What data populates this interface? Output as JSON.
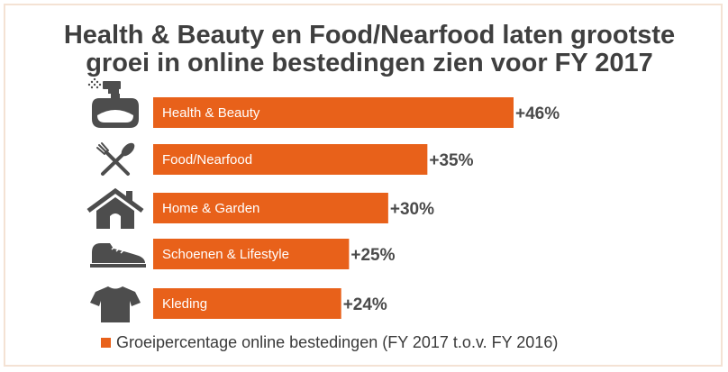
{
  "colors": {
    "bar": "#e8611a",
    "icon": "#4d4d4d",
    "text": "#3f3f3f"
  },
  "title": {
    "line1": "Health & Beauty en Food/Nearfood laten grootste",
    "line2": "groei in online bestedingen zien voor FY 2017"
  },
  "chart_data": {
    "type": "bar",
    "orientation": "horizontal",
    "categories": [
      "Health & Beauty",
      "Food/Nearfood",
      "Home & Garden",
      "Schoenen & Lifestyle",
      "Kleding"
    ],
    "values": [
      46,
      35,
      30,
      25,
      24
    ],
    "value_labels": [
      "+46%",
      "+35%",
      "+30%",
      "+25%",
      "+24%"
    ],
    "icons": [
      "perfume-bottle-icon",
      "fork-spoon-icon",
      "house-icon",
      "shoe-icon",
      "t-shirt-icon"
    ],
    "series": [
      {
        "name": "Groeipercentage online bestedingen (FY 2017 t.o.v. FY 2016)",
        "values": [
          46,
          35,
          30,
          25,
          24
        ]
      }
    ],
    "grid": false,
    "legend": "bottom"
  }
}
